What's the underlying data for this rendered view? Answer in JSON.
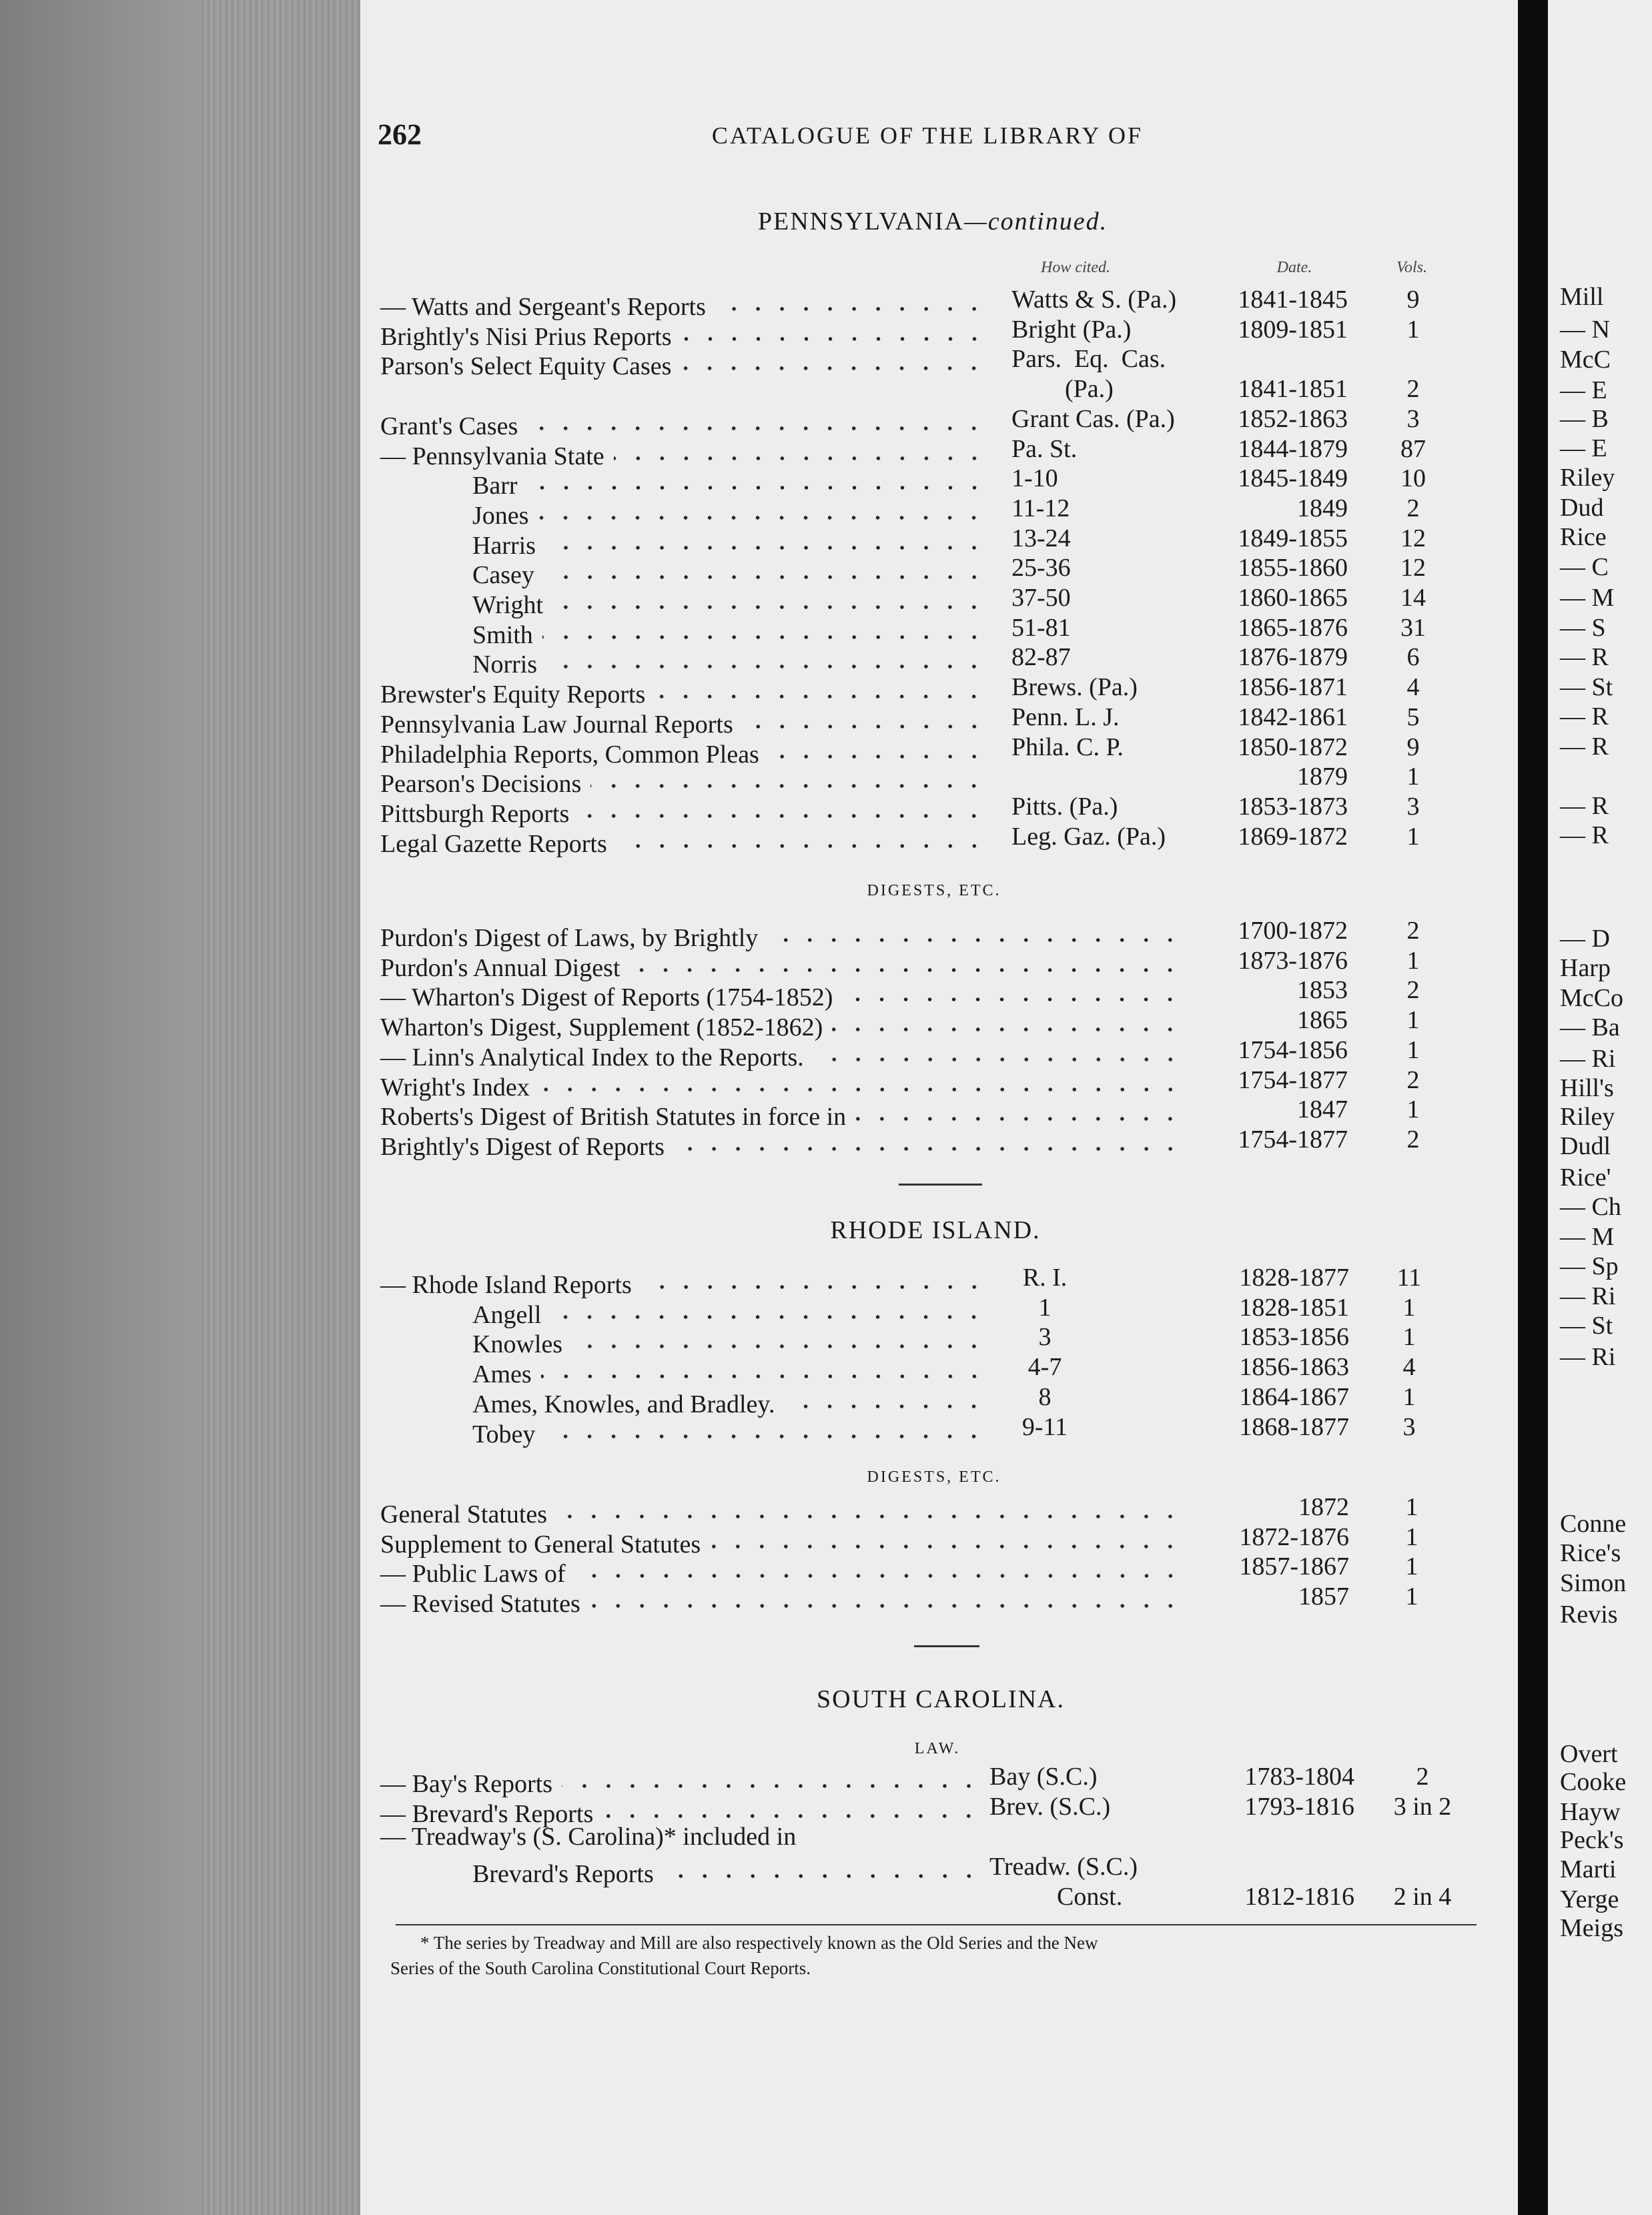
{
  "page": {
    "number": "262",
    "running_head": "CATALOGUE OF THE LIBRARY OF"
  },
  "pennsylvania": {
    "heading": "PENNSYLVANIA",
    "heading_suffix": "—continued.",
    "column_headers": {
      "how_cited": "How cited.",
      "date": "Date.",
      "vols": "Vols."
    },
    "rows": [
      {
        "title": "— Watts and Sergeant's Reports",
        "level": 0,
        "leader": true,
        "cite": "Watts & S. (Pa.)",
        "date": "1841-1845",
        "vols": "9"
      },
      {
        "title": "Brightly's Nisi Prius Reports",
        "level": 0,
        "leader": true,
        "cite": "Bright (Pa.)",
        "date": "1809-1851",
        "vols": "1"
      },
      {
        "title": "Parson's Select Equity Cases",
        "level": 0,
        "leader": true,
        "cite": "Pars.  Eq.  Cas.",
        "date": "",
        "vols": ""
      },
      {
        "title": "",
        "level": 0,
        "leader": false,
        "cite": "(Pa.)",
        "cite_indent": true,
        "date": "1841-1851",
        "vols": "2"
      },
      {
        "title": "Grant's Cases",
        "level": 0,
        "leader": true,
        "cite": "Grant Cas. (Pa.)",
        "date": "1852-1863",
        "vols": "3"
      },
      {
        "title": "— Pennsylvania State",
        "level": 0,
        "leader": true,
        "cite": "Pa. St.",
        "date": "1844-1879",
        "vols": "87"
      },
      {
        "title": "Barr",
        "level": 1,
        "leader": true,
        "cite": "1-10",
        "date": "1845-1849",
        "vols": "10"
      },
      {
        "title": "Jones",
        "level": 1,
        "leader": true,
        "cite": "11-12",
        "date": "1849",
        "vols": "2"
      },
      {
        "title": "Harris",
        "level": 1,
        "leader": true,
        "cite": "13-24",
        "date": "1849-1855",
        "vols": "12"
      },
      {
        "title": "Casey",
        "level": 1,
        "leader": true,
        "cite": "25-36",
        "date": "1855-1860",
        "vols": "12"
      },
      {
        "title": "Wright",
        "level": 1,
        "leader": true,
        "cite": "37-50",
        "date": "1860-1865",
        "vols": "14"
      },
      {
        "title": "Smith",
        "level": 1,
        "leader": true,
        "cite": "51-81",
        "date": "1865-1876",
        "vols": "31"
      },
      {
        "title": "Norris",
        "level": 1,
        "leader": true,
        "cite": "82-87",
        "date": "1876-1879",
        "vols": "6"
      },
      {
        "title": "Brewster's Equity Reports",
        "level": 0,
        "leader": true,
        "cite": "Brews. (Pa.)",
        "date": "1856-1871",
        "vols": "4"
      },
      {
        "title": "Pennsylvania Law Journal Reports",
        "level": 0,
        "leader": true,
        "cite": "Penn. L. J.",
        "date": "1842-1861",
        "vols": "5"
      },
      {
        "title": "Philadelphia Reports, Common Pleas",
        "level": 0,
        "leader": true,
        "cite": "Phila. C. P.",
        "date": "1850-1872",
        "vols": "9"
      },
      {
        "title": "Pearson's Decisions",
        "level": 0,
        "leader": true,
        "cite": "",
        "date": "1879",
        "vols": "1"
      },
      {
        "title": "Pittsburgh Reports",
        "level": 0,
        "leader": true,
        "cite": "Pitts. (Pa.)",
        "date": "1853-1873",
        "vols": "3"
      },
      {
        "title": "Legal Gazette Reports",
        "level": 0,
        "leader": true,
        "cite": "Leg. Gaz. (Pa.)",
        "date": "1869-1872",
        "vols": "1"
      }
    ],
    "digests_heading": "DIGESTS, ETC.",
    "digests": [
      {
        "title": "Purdon's Digest of Laws, by Brightly",
        "level": 0,
        "leader": true,
        "date": "1700-1872",
        "vols": "2"
      },
      {
        "title": "Purdon's Annual Digest",
        "level": 0,
        "leader": true,
        "date": "1873-1876",
        "vols": "1"
      },
      {
        "title": "— Wharton's Digest of Reports (1754-1852)",
        "level": 0,
        "leader": true,
        "date": "1853",
        "vols": "2"
      },
      {
        "title": "Wharton's Digest, Supplement (1852-1862)",
        "level": 0,
        "leader": true,
        "date": "1865",
        "vols": "1"
      },
      {
        "title": "— Linn's Analytical Index to the Reports.",
        "level": 0,
        "leader": true,
        "date": "1754-1856",
        "vols": "1"
      },
      {
        "title": "Wright's Index",
        "level": 0,
        "leader": true,
        "date": "1754-1877",
        "vols": "2"
      },
      {
        "title": "Roberts's Digest of British Statutes in force in",
        "level": 0,
        "leader": true,
        "date": "1847",
        "vols": "1"
      },
      {
        "title": "Brightly's Digest of Reports",
        "level": 0,
        "leader": true,
        "date": "1754-1877",
        "vols": "2"
      }
    ]
  },
  "rhode_island": {
    "heading": "RHODE ISLAND.",
    "rows": [
      {
        "title": "— Rhode Island Reports",
        "level": 0,
        "leader": true,
        "cite": "R. I.",
        "date": "1828-1877",
        "vols": "11"
      },
      {
        "title": "Angell",
        "level": 1,
        "leader": true,
        "cite": "1",
        "date": "1828-1851",
        "vols": "1"
      },
      {
        "title": "Knowles",
        "level": 1,
        "leader": true,
        "cite": "3",
        "date": "1853-1856",
        "vols": "1"
      },
      {
        "title": "Ames",
        "level": 1,
        "leader": true,
        "cite": "4-7",
        "date": "1856-1863",
        "vols": "4"
      },
      {
        "title": "Ames, Knowles, and Bradley.",
        "level": 1,
        "leader": true,
        "cite": "8",
        "date": "1864-1867",
        "vols": "1"
      },
      {
        "title": "Tobey",
        "level": 1,
        "leader": true,
        "cite": "9-11",
        "date": "1868-1877",
        "vols": "3"
      }
    ],
    "digests_heading": "DIGESTS, ETC.",
    "digests": [
      {
        "title": "General Statutes",
        "level": 0,
        "leader": true,
        "date": "1872",
        "vols": "1"
      },
      {
        "title": "Supplement to General Statutes",
        "level": 0,
        "leader": true,
        "date": "1872-1876",
        "vols": "1"
      },
      {
        "title": "— Public Laws of",
        "level": 0,
        "leader": true,
        "date": "1857-1867",
        "vols": "1"
      },
      {
        "title": "— Revised Statutes",
        "level": 0,
        "leader": true,
        "date": "1857",
        "vols": "1"
      }
    ]
  },
  "south_carolina": {
    "heading": "SOUTH CAROLINA.",
    "subheading": "LAW.",
    "rows": [
      {
        "title": "— Bay's Reports",
        "level": 0,
        "leader": true,
        "cite": "Bay (S.C.)",
        "date": "1783-1804",
        "vols": "2"
      },
      {
        "title": "— Brevard's Reports",
        "level": 0,
        "leader": true,
        "cite": "Brev. (S.C.)",
        "date": "1793-1816",
        "vols": "3 in 2"
      },
      {
        "title": "— Treadway's (S. Carolina)* included in",
        "level": 0,
        "leader": false,
        "cite": "",
        "date": "",
        "vols": ""
      },
      {
        "title": "Brevard's Reports",
        "level": 1,
        "leader": true,
        "cite": "Treadw. (S.C.)",
        "date": "",
        "vols": ""
      },
      {
        "title": "",
        "level": 0,
        "leader": false,
        "cite": "Const.",
        "cite_indent": true,
        "date": "1812-1816",
        "vols": "2 in 4"
      }
    ]
  },
  "footnote": {
    "line1": "* The series by Treadway and Mill are also respectively known as the Old Series and the New",
    "line2": "Series of the South Carolina Constitutional Court Reports."
  },
  "facing_page_fragments": [
    "Mill",
    "— N",
    "McC",
    "— E",
    "— B",
    "— E",
    "Riley",
    "Dud",
    "Rice",
    "— C",
    "— M",
    "— S",
    "— R",
    "— St",
    "— R",
    "— R",
    "— R",
    "— R",
    "— D",
    "Harp",
    "McCo",
    "— Ba",
    "— Ri",
    "Hill's",
    "Riley",
    "Dudl",
    "Rice'",
    "— Ch",
    "— M",
    "— Sp",
    "— Ri",
    "— St",
    "— Ri",
    "Conne",
    "Rice's",
    "Simon",
    "Revis",
    "Overt",
    "Cooke",
    "Hayw",
    "Peck's",
    "Marti",
    "Yerge",
    "Meigs"
  ]
}
